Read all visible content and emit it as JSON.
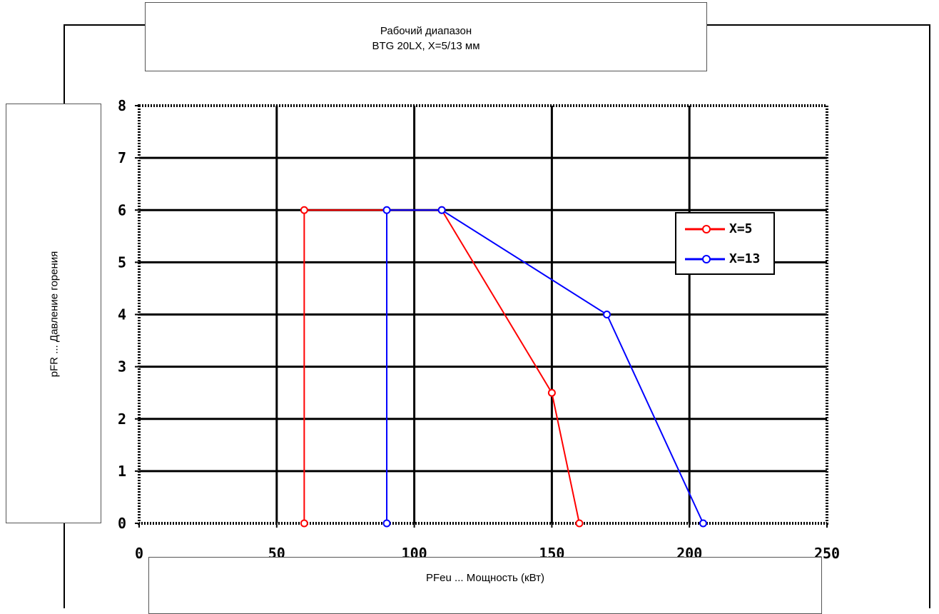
{
  "chart_data": {
    "type": "line",
    "title": "Рабочий диапазон",
    "subtitle": "BTG 20LX, X=5/13 мм",
    "xlabel": "PFeu ...  Мощность (кВт)",
    "ylabel": "pFR ...  Давление горения",
    "xlim": [
      0,
      250
    ],
    "ylim": [
      0,
      8
    ],
    "x_ticks": [
      0,
      50,
      100,
      150,
      200,
      250
    ],
    "y_ticks": [
      0,
      1,
      2,
      3,
      4,
      5,
      6,
      7,
      8
    ],
    "grid": true,
    "legend_position": "right",
    "series": [
      {
        "name": "X=5",
        "color": "#ff0000",
        "marker": "circle",
        "points": [
          [
            60,
            0
          ],
          [
            60,
            6
          ],
          [
            110,
            6
          ],
          [
            150,
            2.5
          ],
          [
            160,
            0
          ]
        ]
      },
      {
        "name": "X=13",
        "color": "#0000ff",
        "marker": "circle",
        "points": [
          [
            90,
            0
          ],
          [
            90,
            6
          ],
          [
            110,
            6
          ],
          [
            170,
            4
          ],
          [
            205,
            0
          ]
        ]
      }
    ]
  }
}
